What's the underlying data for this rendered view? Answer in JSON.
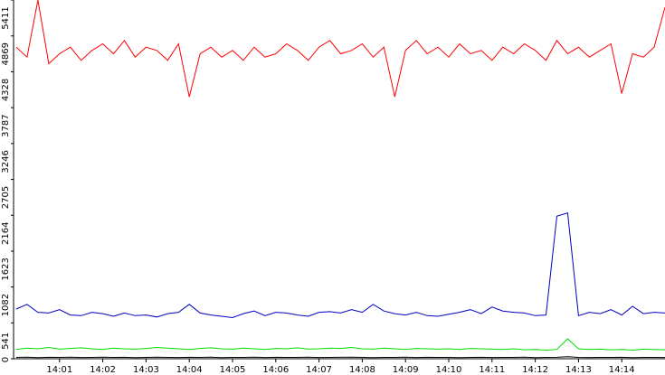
{
  "chart_data": {
    "type": "line",
    "x": [
      0,
      0.25,
      0.5,
      0.75,
      1,
      1.25,
      1.5,
      1.75,
      2,
      2.25,
      2.5,
      2.75,
      3,
      3.25,
      3.5,
      3.75,
      4,
      4.25,
      4.5,
      4.75,
      5,
      5.25,
      5.5,
      5.75,
      6,
      6.25,
      6.5,
      6.75,
      7,
      7.25,
      7.5,
      7.75,
      8,
      8.25,
      8.5,
      8.75,
      9,
      9.25,
      9.5,
      9.75,
      10,
      10.25,
      10.5,
      10.75,
      11,
      11.25,
      11.5,
      11.75,
      12,
      12.25,
      12.5,
      12.75,
      13,
      13.25,
      13.5,
      13.75,
      14,
      14.25,
      14.5,
      14.75,
      15
    ],
    "xlim": [
      0,
      15
    ],
    "xticks": [
      {
        "value": 1,
        "label": "14:01"
      },
      {
        "value": 2,
        "label": "14:02"
      },
      {
        "value": 3,
        "label": "14:03"
      },
      {
        "value": 4,
        "label": "14:04"
      },
      {
        "value": 5,
        "label": "14:05"
      },
      {
        "value": 6,
        "label": "14:06"
      },
      {
        "value": 7,
        "label": "14:07"
      },
      {
        "value": 8,
        "label": "14:08"
      },
      {
        "value": 9,
        "label": "14:09"
      },
      {
        "value": 10,
        "label": "14:10"
      },
      {
        "value": 11,
        "label": "14:11"
      },
      {
        "value": 12,
        "label": "14:12"
      },
      {
        "value": 13,
        "label": "14:13"
      },
      {
        "value": 14,
        "label": "14:14"
      }
    ],
    "ylim": [
      0,
      5411
    ],
    "yticks": [
      0,
      541,
      1082,
      1623,
      2164,
      2705,
      3246,
      3787,
      4328,
      4869,
      5411
    ],
    "series": [
      {
        "color": "#ff0000",
        "values": [
          4700,
          4550,
          5411,
          4450,
          4600,
          4700,
          4500,
          4650,
          4750,
          4600,
          4800,
          4550,
          4700,
          4650,
          4500,
          4750,
          3950,
          4600,
          4700,
          4550,
          4650,
          4500,
          4700,
          4550,
          4600,
          4750,
          4650,
          4500,
          4700,
          4800,
          4600,
          4650,
          4750,
          4550,
          4700,
          3950,
          4650,
          4800,
          4600,
          4700,
          4550,
          4750,
          4600,
          4650,
          4500,
          4700,
          4600,
          4750,
          4650,
          4500,
          4800,
          4600,
          4700,
          4550,
          4650,
          4750,
          4000,
          4600,
          4550,
          4700,
          5300
        ]
      },
      {
        "color": "#0000c0",
        "values": [
          750,
          820,
          700,
          690,
          740,
          660,
          650,
          700,
          680,
          640,
          690,
          650,
          660,
          630,
          680,
          700,
          820,
          690,
          660,
          640,
          620,
          680,
          720,
          650,
          700,
          690,
          660,
          640,
          700,
          710,
          690,
          740,
          700,
          820,
          720,
          680,
          660,
          700,
          650,
          640,
          670,
          700,
          740,
          680,
          780,
          720,
          700,
          690,
          650,
          660,
          2150,
          2200,
          650,
          700,
          680,
          740,
          660,
          790,
          680,
          700,
          690
        ]
      },
      {
        "color": "#00dd00",
        "values": [
          140,
          160,
          150,
          170,
          145,
          155,
          165,
          150,
          140,
          160,
          150,
          145,
          155,
          170,
          160,
          150,
          140,
          155,
          165,
          150,
          145,
          160,
          150,
          140,
          155,
          150,
          165,
          145,
          150,
          160,
          155,
          170,
          150,
          145,
          160,
          150,
          140,
          155,
          150,
          145,
          150,
          140,
          155,
          150,
          145,
          140,
          150,
          135,
          140,
          130,
          140,
          300,
          150,
          140,
          145,
          135,
          140,
          130,
          145,
          140,
          135
        ]
      },
      {
        "color": "#000000",
        "values": [
          20,
          25,
          18,
          22,
          20,
          24,
          19,
          21,
          23,
          20,
          22,
          18,
          20,
          25,
          21,
          19,
          22,
          20,
          24,
          18,
          21,
          20,
          23,
          19,
          22,
          20,
          21,
          24,
          19,
          20,
          22,
          25,
          20,
          18,
          21,
          20,
          23,
          19,
          22,
          20,
          21,
          18,
          20,
          22,
          19,
          21,
          20,
          23,
          18,
          20,
          22,
          30,
          20,
          19,
          21,
          20,
          22,
          18,
          21,
          20,
          19
        ]
      }
    ]
  }
}
